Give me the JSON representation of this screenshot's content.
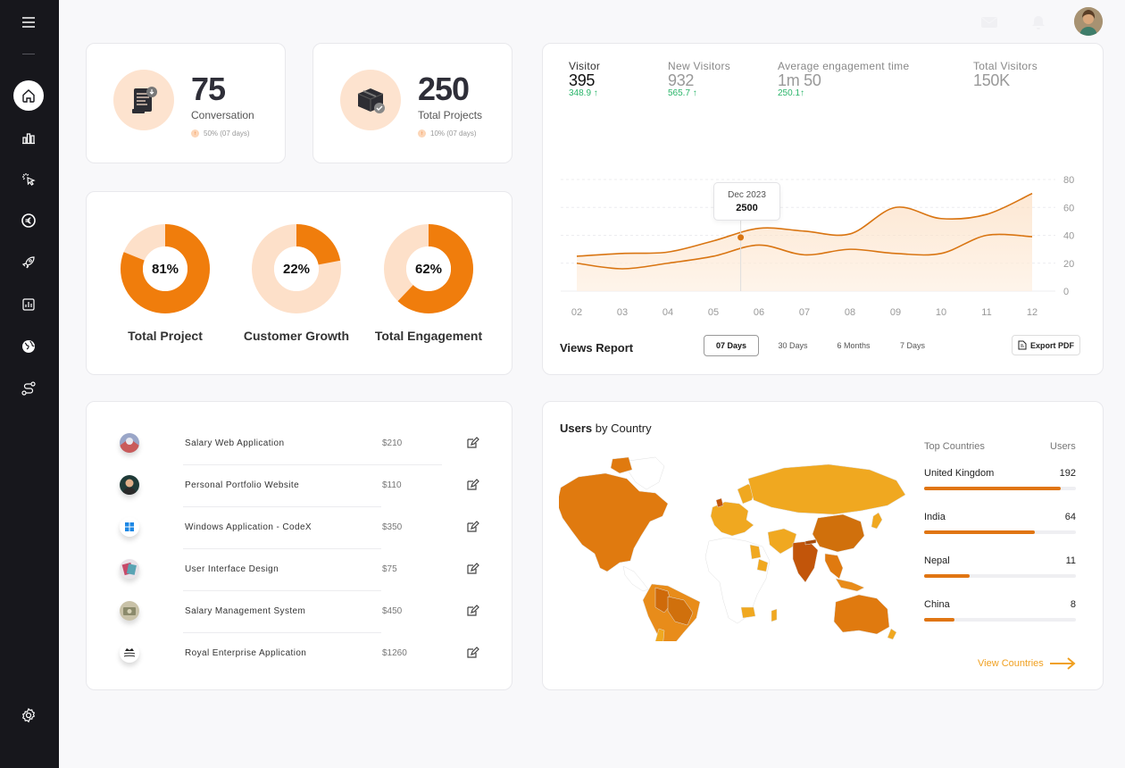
{
  "sidebar": {
    "items": [
      {
        "icon": "home-icon",
        "active": true
      },
      {
        "icon": "bar-chart-icon"
      },
      {
        "icon": "cursor-click-icon"
      },
      {
        "icon": "euro-icon"
      },
      {
        "icon": "rocket-icon"
      },
      {
        "icon": "report-icon"
      },
      {
        "icon": "globe-icon"
      },
      {
        "icon": "route-icon"
      }
    ],
    "bottom": {
      "icon": "gear-icon"
    }
  },
  "stats": [
    {
      "value": "75",
      "label": "Conversation",
      "sub": "50% (07 days)",
      "icon": "document-download-icon"
    },
    {
      "value": "250",
      "label": "Total Projects",
      "sub": "10% (07 days)",
      "icon": "box-check-icon"
    }
  ],
  "donuts": [
    {
      "value": "81%",
      "percent": 81,
      "label": "Total Project"
    },
    {
      "value": "22%",
      "percent": 22,
      "label": "Customer Growth"
    },
    {
      "value": "62%",
      "percent": 62,
      "label": "Total Engagement"
    }
  ],
  "projects": [
    {
      "name": "Salary Web Application",
      "price": "$210"
    },
    {
      "name": "Personal Portfolio Website",
      "price": "$110"
    },
    {
      "name": "Windows Application - CodeX",
      "price": "$350"
    },
    {
      "name": "User Interface Design",
      "price": "$75"
    },
    {
      "name": "Salary Management System",
      "price": "$450"
    },
    {
      "name": "Royal Enterprise Application",
      "price": "$1260"
    }
  ],
  "visitors": {
    "stats": [
      {
        "label": "Visitor",
        "value": "395",
        "change": "348.9 ↑"
      },
      {
        "label": "New Visitors",
        "value": "932",
        "change": "565.7 ↑"
      },
      {
        "label": "Average engagement time",
        "value": "1m 50",
        "change": "250.1↑"
      },
      {
        "label": "Total Visitors",
        "value": "150K",
        "change": ""
      }
    ],
    "tooltip": {
      "date": "Dec 2023",
      "value": "2500"
    },
    "title": "Views Report",
    "ranges": [
      "07 Days",
      "30 Days",
      "6 Months",
      "7 Days"
    ],
    "active_range": "07 Days",
    "export_label": "Export PDF"
  },
  "chart_data": {
    "type": "line",
    "x": [
      "02",
      "03",
      "04",
      "05",
      "06",
      "07",
      "08",
      "09",
      "10",
      "11",
      "12"
    ],
    "ylim": [
      0,
      80
    ],
    "yticks": [
      0,
      20,
      40,
      60,
      80
    ],
    "series": [
      {
        "values": [
          25,
          27,
          28,
          36,
          45,
          43,
          41,
          60,
          52,
          55,
          70
        ]
      },
      {
        "values": [
          20,
          16,
          20,
          25,
          33,
          26,
          30,
          27,
          27,
          40,
          39
        ]
      }
    ],
    "colors": [
      "#d97512",
      "#d97512"
    ]
  },
  "users_by_country": {
    "title_bold": "Users",
    "title_rest": "by Country",
    "col_country": "Top Countries",
    "col_users": "Users",
    "countries": [
      {
        "name": "United Kingdom",
        "users": "192",
        "fraction": 0.9
      },
      {
        "name": "India",
        "users": "64",
        "fraction": 0.73
      },
      {
        "name": "Nepal",
        "users": "11",
        "fraction": 0.3
      },
      {
        "name": "China",
        "users": "8",
        "fraction": 0.2
      }
    ],
    "link": "View Countries"
  }
}
